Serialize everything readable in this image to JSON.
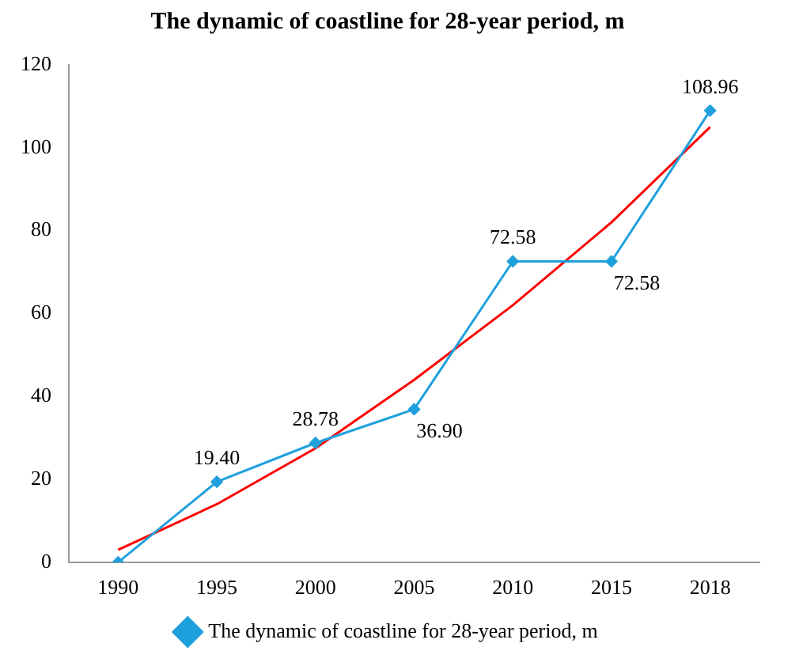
{
  "chart_data": {
    "type": "line",
    "title": "The dynamic of coastline for 28-year period, m",
    "categories": [
      "1990",
      "1995",
      "2000",
      "2005",
      "2010",
      "2015",
      "2018"
    ],
    "series": [
      {
        "name": "The dynamic of coastline for 28-year period, m",
        "color": "#1ea0dc",
        "values": [
          0,
          19.4,
          28.78,
          36.9,
          72.58,
          72.58,
          108.96
        ],
        "value_labels": [
          null,
          "19.40",
          "28.78",
          "36.90",
          "72.58",
          "72.58",
          "108.96"
        ],
        "marker": "diamond"
      },
      {
        "type": "line",
        "color": "#ff0000",
        "values": [
          3,
          14,
          27.5,
          44,
          62,
          82,
          105
        ],
        "marker": "none"
      }
    ],
    "ylim": [
      0,
      120
    ],
    "yticks": [
      0,
      20,
      40,
      60,
      80,
      100,
      120
    ],
    "grid": false,
    "legend": "bottom"
  }
}
